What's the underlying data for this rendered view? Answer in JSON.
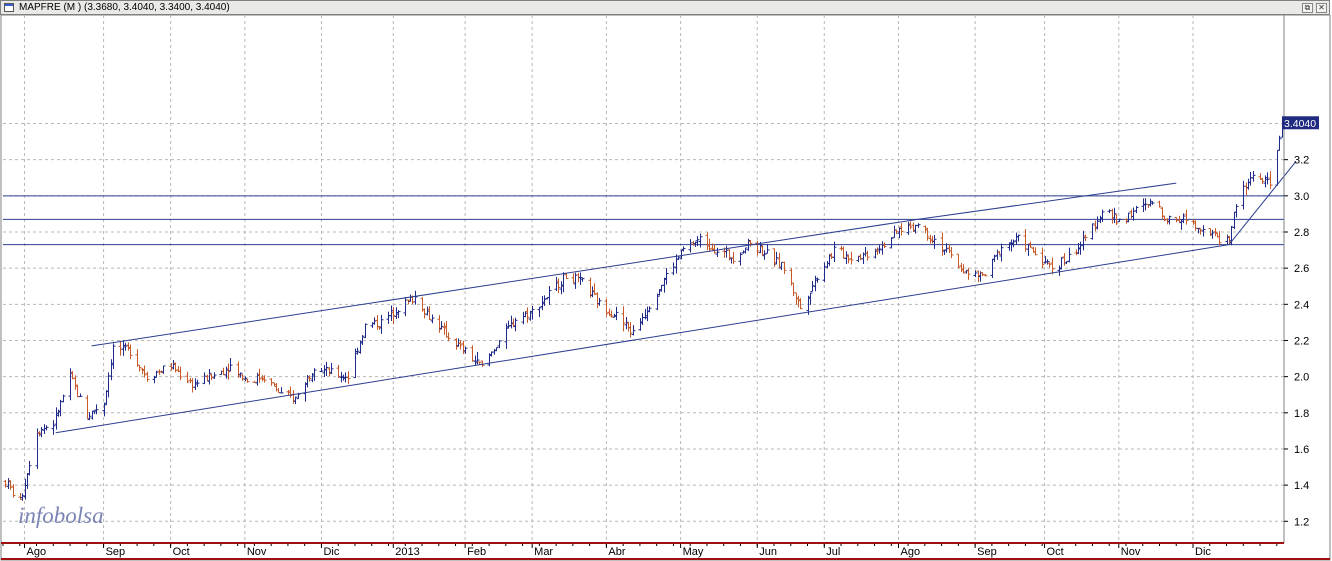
{
  "window": {
    "title": "MAPFRE (M ) (3.3680, 3.4040, 3.3400, 3.4040)",
    "restore_symbol": "⧉",
    "close_symbol": "✕"
  },
  "chart_data": {
    "type": "ohlc",
    "symbol": "MAPFRE",
    "ylim": [
      1.08,
      4.0
    ],
    "y_ticks": [
      1.2,
      1.4,
      1.6,
      1.8,
      2.0,
      2.2,
      2.4,
      2.6,
      2.8,
      3.0,
      3.2,
      3.4
    ],
    "y_tick_labels": [
      "1.2",
      "1.4",
      "1.6",
      "1.8",
      "2.0",
      "2.2",
      "2.4",
      "2.6",
      "2.8",
      "3.0",
      "3.2",
      "3.4"
    ],
    "last_price_label": "3.4040",
    "x_ticks": [
      {
        "label": "Ago",
        "date": "2012-08-01"
      },
      {
        "label": "Sep",
        "date": "2012-09-03"
      },
      {
        "label": "Oct",
        "date": "2012-10-01"
      },
      {
        "label": "Nov",
        "date": "2012-11-01"
      },
      {
        "label": "Dic",
        "date": "2012-12-03"
      },
      {
        "label": "2013",
        "date": "2013-01-02"
      },
      {
        "label": "Feb",
        "date": "2013-02-01"
      },
      {
        "label": "Mar",
        "date": "2013-03-01"
      },
      {
        "label": "Abr",
        "date": "2013-04-01"
      },
      {
        "label": "May",
        "date": "2013-05-02"
      },
      {
        "label": "Jun",
        "date": "2013-06-03"
      },
      {
        "label": "Jul",
        "date": "2013-07-01"
      },
      {
        "label": "Ago",
        "date": "2013-08-01"
      },
      {
        "label": "Sep",
        "date": "2013-09-02"
      },
      {
        "label": "Oct",
        "date": "2013-10-01"
      },
      {
        "label": "Nov",
        "date": "2013-11-01"
      },
      {
        "label": "Dic",
        "date": "2013-12-02"
      }
    ],
    "price_path": [
      [
        "2012-07-24",
        1.42
      ],
      [
        "2012-07-30",
        1.3
      ],
      [
        "2012-08-06",
        1.7
      ],
      [
        "2012-08-13",
        1.74
      ],
      [
        "2012-08-20",
        2.0
      ],
      [
        "2012-08-27",
        1.78
      ],
      [
        "2012-09-03",
        1.86
      ],
      [
        "2012-09-07",
        2.16
      ],
      [
        "2012-09-14",
        2.14
      ],
      [
        "2012-09-21",
        2.0
      ],
      [
        "2012-10-01",
        2.06
      ],
      [
        "2012-10-10",
        1.96
      ],
      [
        "2012-10-18",
        2.0
      ],
      [
        "2012-10-26",
        2.06
      ],
      [
        "2012-11-02",
        1.98
      ],
      [
        "2012-11-09",
        2.0
      ],
      [
        "2012-11-16",
        1.9
      ],
      [
        "2012-11-22",
        1.88
      ],
      [
        "2012-11-30",
        2.06
      ],
      [
        "2012-12-07",
        2.02
      ],
      [
        "2012-12-14",
        2.0
      ],
      [
        "2012-12-21",
        2.28
      ],
      [
        "2012-12-28",
        2.3
      ],
      [
        "2013-01-04",
        2.38
      ],
      [
        "2013-01-11",
        2.44
      ],
      [
        "2013-01-18",
        2.32
      ],
      [
        "2013-01-25",
        2.22
      ],
      [
        "2013-02-04",
        2.1
      ],
      [
        "2013-02-08",
        2.05
      ],
      [
        "2013-02-15",
        2.2
      ],
      [
        "2013-02-22",
        2.32
      ],
      [
        "2013-03-01",
        2.36
      ],
      [
        "2013-03-08",
        2.46
      ],
      [
        "2013-03-15",
        2.56
      ],
      [
        "2013-03-22",
        2.52
      ],
      [
        "2013-03-29",
        2.4
      ],
      [
        "2013-04-05",
        2.34
      ],
      [
        "2013-04-12",
        2.24
      ],
      [
        "2013-04-19",
        2.4
      ],
      [
        "2013-04-26",
        2.56
      ],
      [
        "2013-05-03",
        2.7
      ],
      [
        "2013-05-10",
        2.76
      ],
      [
        "2013-05-17",
        2.7
      ],
      [
        "2013-05-24",
        2.66
      ],
      [
        "2013-05-31",
        2.74
      ],
      [
        "2013-06-07",
        2.68
      ],
      [
        "2013-06-14",
        2.6
      ],
      [
        "2013-06-21",
        2.38
      ],
      [
        "2013-06-28",
        2.56
      ],
      [
        "2013-07-05",
        2.7
      ],
      [
        "2013-07-12",
        2.66
      ],
      [
        "2013-07-19",
        2.68
      ],
      [
        "2013-07-26",
        2.74
      ],
      [
        "2013-08-02",
        2.82
      ],
      [
        "2013-08-09",
        2.84
      ],
      [
        "2013-08-16",
        2.76
      ],
      [
        "2013-08-23",
        2.66
      ],
      [
        "2013-08-30",
        2.56
      ],
      [
        "2013-09-06",
        2.56
      ],
      [
        "2013-09-13",
        2.72
      ],
      [
        "2013-09-20",
        2.76
      ],
      [
        "2013-09-27",
        2.68
      ],
      [
        "2013-10-04",
        2.6
      ],
      [
        "2013-10-11",
        2.66
      ],
      [
        "2013-10-18",
        2.76
      ],
      [
        "2013-10-25",
        2.92
      ],
      [
        "2013-11-01",
        2.86
      ],
      [
        "2013-11-08",
        2.92
      ],
      [
        "2013-11-15",
        2.96
      ],
      [
        "2013-11-22",
        2.86
      ],
      [
        "2013-11-29",
        2.88
      ],
      [
        "2013-12-06",
        2.82
      ],
      [
        "2013-12-13",
        2.76
      ],
      [
        "2013-12-17",
        2.76
      ],
      [
        "2013-12-20",
        2.96
      ],
      [
        "2013-12-27",
        3.12
      ],
      [
        "2014-01-03",
        3.06
      ],
      [
        "2014-01-08",
        3.4
      ]
    ],
    "trend_lines": [
      {
        "name": "channel-upper-1",
        "from": [
          "2012-08-29",
          2.17
        ],
        "to": [
          "2013-08-09",
          2.87
        ]
      },
      {
        "name": "channel-upper-2",
        "from": [
          "2013-08-09",
          2.87
        ],
        "to": [
          "2013-11-25",
          3.07
        ]
      },
      {
        "name": "channel-lower",
        "from": [
          "2012-08-14",
          1.69
        ],
        "to": [
          "2013-12-17",
          2.73
        ]
      },
      {
        "name": "steep-support",
        "from": [
          "2013-12-17",
          2.73
        ],
        "to": [
          "2014-01-14",
          3.19
        ]
      }
    ],
    "horizontal_lines": [
      3.0,
      2.87,
      2.73
    ],
    "grid": true,
    "watermark": "infobolsa",
    "colors": {
      "up": "#1f2a8a",
      "down": "#c85a2a",
      "trend": "#2b3d8f",
      "grid": "#b8b8b8",
      "price_label_bg": "#1f2a80",
      "bottom_border": "#a01010"
    }
  }
}
